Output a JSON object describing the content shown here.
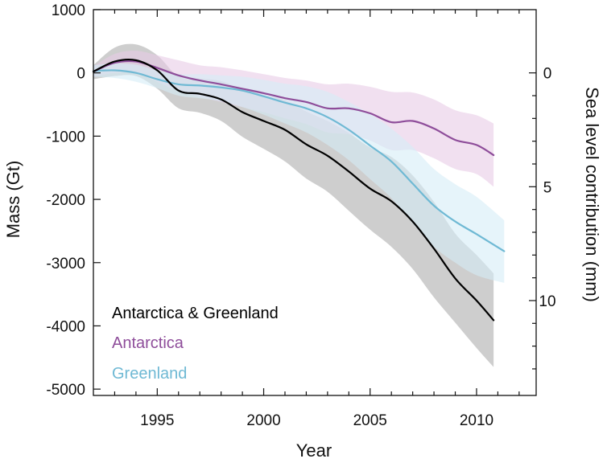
{
  "chart_data": {
    "type": "line",
    "xlabel": "Year",
    "ylabel": "Mass (Gt)",
    "y2label": "Sea level contribution (mm)",
    "xlim": [
      1992,
      2012.8
    ],
    "ylim": [
      -5100,
      1000
    ],
    "x_ticks": [
      1995,
      2000,
      2005,
      2010
    ],
    "x_tick_labels": [
      "1995",
      "2000",
      "2005",
      "2010"
    ],
    "y_ticks": [
      1000,
      0,
      -1000,
      -2000,
      -3000,
      -4000,
      -5000
    ],
    "y_tick_labels": [
      "1000",
      "0",
      "-1000",
      "-2000",
      "-3000",
      "-4000",
      "-5000"
    ],
    "y2_ticks": [
      0,
      5,
      10
    ],
    "y2_tick_labels": [
      "0",
      "5",
      "10"
    ],
    "y2_gt_per_mm": -360,
    "grid": false,
    "legend_placement": "bottom-left",
    "series": [
      {
        "name": "Antarctica & Greenland",
        "color": "#000000",
        "band_color": "#bdbdbd",
        "x": [
          1992,
          1993,
          1994,
          1995,
          1996,
          1997,
          1998,
          1999,
          2000,
          2001,
          2002,
          2003,
          2004,
          2005,
          2006,
          2007,
          2008,
          2009,
          2010,
          2010.8
        ],
        "y": [
          20,
          180,
          200,
          40,
          -280,
          -330,
          -420,
          -620,
          -760,
          -900,
          -1130,
          -1310,
          -1560,
          -1830,
          -2030,
          -2350,
          -2780,
          -3250,
          -3600,
          -3910
        ],
        "lower": [
          -100,
          -50,
          -50,
          -250,
          -560,
          -630,
          -760,
          -1010,
          -1200,
          -1400,
          -1670,
          -1880,
          -2180,
          -2480,
          -2750,
          -3100,
          -3550,
          -3950,
          -4350,
          -4650
        ],
        "upper": [
          120,
          400,
          450,
          280,
          -60,
          -90,
          -130,
          -260,
          -360,
          -430,
          -610,
          -760,
          -950,
          -1180,
          -1330,
          -1620,
          -2040,
          -2540,
          -2880,
          -3170
        ]
      },
      {
        "name": "Antarctica",
        "color": "#8e4d9a",
        "band_color": "#e8cce6",
        "x": [
          1992,
          1993,
          1994,
          1995,
          1996,
          1997,
          1998,
          1999,
          2000,
          2001,
          2002,
          2003,
          2004,
          2005,
          2006,
          2007,
          2008,
          2009,
          2010,
          2010.8
        ],
        "y": [
          20,
          160,
          180,
          80,
          -40,
          -120,
          -180,
          -250,
          -320,
          -400,
          -460,
          -560,
          -560,
          -640,
          -780,
          -760,
          -880,
          -1060,
          -1140,
          -1300
        ],
        "lower": [
          -60,
          0,
          0,
          -140,
          -290,
          -380,
          -460,
          -540,
          -620,
          -720,
          -810,
          -940,
          -970,
          -1070,
          -1220,
          -1220,
          -1350,
          -1520,
          -1600,
          -1800
        ],
        "upper": [
          100,
          300,
          350,
          280,
          200,
          120,
          90,
          40,
          -20,
          -80,
          -120,
          -180,
          -170,
          -220,
          -300,
          -310,
          -420,
          -590,
          -670,
          -800
        ]
      },
      {
        "name": "Greenland",
        "color": "#6fb9d4",
        "band_color": "#d6edf6",
        "x": [
          1992,
          1993,
          1994,
          1995,
          1996,
          1997,
          1998,
          1999,
          2000,
          2001,
          2002,
          2003,
          2004,
          2005,
          2006,
          2007,
          2008,
          2009,
          2010,
          2011.3
        ],
        "y": [
          30,
          40,
          0,
          -100,
          -180,
          -200,
          -230,
          -280,
          -370,
          -470,
          -560,
          -700,
          -900,
          -1150,
          -1400,
          -1750,
          -2100,
          -2350,
          -2550,
          -2820
        ],
        "lower": [
          -60,
          -80,
          -140,
          -240,
          -360,
          -400,
          -450,
          -540,
          -660,
          -800,
          -940,
          -1140,
          -1380,
          -1680,
          -1980,
          -2380,
          -2750,
          -3000,
          -3200,
          -3320
        ],
        "upper": [
          120,
          150,
          130,
          40,
          -20,
          -20,
          -40,
          -60,
          -110,
          -170,
          -210,
          -300,
          -460,
          -650,
          -880,
          -1170,
          -1520,
          -1760,
          -1960,
          -2330
        ]
      }
    ]
  }
}
